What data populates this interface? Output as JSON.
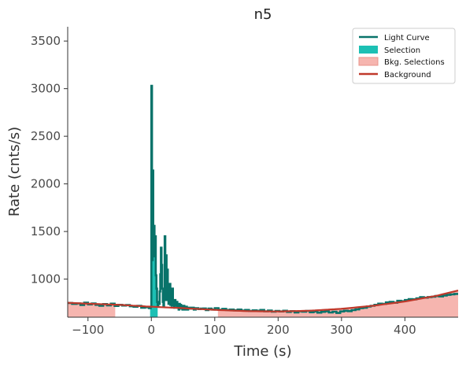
{
  "chart_data": {
    "type": "line",
    "title": "n5",
    "xlabel": "Time (s)",
    "ylabel": "Rate (cnts/s)",
    "xlim": [
      -132,
      484
    ],
    "ylim": [
      600,
      3650
    ],
    "xticks": [
      -100,
      0,
      100,
      200,
      300,
      400
    ],
    "xtick_labels": [
      "−100",
      "0",
      "100",
      "200",
      "300",
      "400"
    ],
    "yticks": [
      1000,
      1500,
      2000,
      2500,
      3000,
      3500
    ],
    "ytick_labels": [
      "1000",
      "1500",
      "2000",
      "2500",
      "3000",
      "3500"
    ],
    "grid": false,
    "legend_position": "top-right",
    "legend": [
      {
        "label": "Light Curve",
        "kind": "line",
        "color": "#08736a"
      },
      {
        "label": "Selection",
        "kind": "patch",
        "color": "#1cc0b4"
      },
      {
        "label": "Bkg. Selections",
        "kind": "patch",
        "color": "#f6b5af"
      },
      {
        "label": "Background",
        "kind": "line",
        "color": "#c0392b"
      }
    ],
    "colors": {
      "light_curve": "#08736a",
      "selection": "#1cc0b4",
      "bkg_selection": "#f6b5af",
      "background": "#c0392b"
    },
    "selection_range": [
      -2,
      10
    ],
    "bkg_selection_ranges": [
      [
        -132,
        -57
      ],
      [
        105,
        484
      ]
    ],
    "light_curve": {
      "name": "Light Curve",
      "x": [
        -132,
        -125,
        -118,
        -112,
        -106,
        -100,
        -94,
        -88,
        -82,
        -76,
        -70,
        -64,
        -58,
        -52,
        -46,
        -40,
        -34,
        -28,
        -22,
        -16,
        -10,
        -4,
        -1,
        0,
        1,
        2,
        3,
        4,
        5,
        6,
        7,
        8,
        9,
        10,
        11,
        12,
        13,
        14,
        15,
        16,
        17,
        18,
        19,
        20,
        21,
        22,
        23,
        24,
        25,
        26,
        27,
        28,
        29,
        30,
        31,
        32,
        33,
        34,
        35,
        36,
        37,
        38,
        39,
        40,
        41,
        42,
        43,
        44,
        45,
        46,
        47,
        48,
        49,
        50,
        51,
        52,
        53,
        54,
        55,
        56,
        58,
        61,
        64,
        67,
        70,
        74,
        78,
        82,
        86,
        90,
        95,
        100,
        106,
        112,
        118,
        124,
        130,
        136,
        142,
        148,
        154,
        160,
        166,
        172,
        178,
        184,
        190,
        196,
        202,
        208,
        214,
        220,
        226,
        232,
        238,
        244,
        250,
        256,
        262,
        268,
        274,
        280,
        286,
        292,
        298,
        304,
        310,
        316,
        322,
        328,
        334,
        340,
        346,
        352,
        358,
        364,
        370,
        376,
        382,
        388,
        394,
        400,
        406,
        412,
        418,
        424,
        430,
        436,
        442,
        448,
        454,
        460,
        466,
        472,
        478,
        484
      ],
      "y": [
        750,
        740,
        745,
        728,
        752,
        735,
        745,
        730,
        720,
        738,
        725,
        742,
        718,
        730,
        722,
        728,
        715,
        710,
        720,
        700,
        705,
        695,
        710,
        3030,
        1200,
        2140,
        1290,
        1560,
        1240,
        1450,
        1040,
        900,
        760,
        720,
        760,
        740,
        870,
        1050,
        1330,
        1150,
        900,
        760,
        720,
        780,
        1450,
        820,
        1250,
        780,
        1100,
        840,
        740,
        760,
        950,
        730,
        800,
        720,
        900,
        760,
        720,
        700,
        780,
        720,
        740,
        760,
        700,
        720,
        680,
        740,
        700,
        730,
        690,
        720,
        680,
        700,
        720,
        680,
        700,
        690,
        710,
        680,
        700,
        690,
        700,
        680,
        695,
        685,
        690,
        692,
        675,
        690,
        680,
        695,
        678,
        688,
        676,
        680,
        672,
        680,
        670,
        676,
        665,
        672,
        668,
        676,
        662,
        670,
        658,
        665,
        660,
        668,
        655,
        664,
        650,
        662,
        658,
        666,
        652,
        660,
        648,
        656,
        662,
        650,
        658,
        645,
        660,
        668,
        664,
        674,
        682,
        695,
        700,
        712,
        720,
        730,
        742,
        740,
        755,
        760,
        752,
        772,
        768,
        780,
        790,
        788,
        798,
        810,
        805,
        812,
        815,
        822,
        818,
        828,
        835,
        840,
        845,
        860
      ]
    },
    "background": {
      "name": "Background",
      "x": [
        -132,
        -100,
        -50,
        0,
        50,
        100,
        150,
        200,
        250,
        300,
        350,
        400,
        450,
        484
      ],
      "y": [
        752,
        742,
        730,
        710,
        695,
        677,
        664,
        660,
        668,
        688,
        720,
        765,
        825,
        880
      ]
    }
  }
}
